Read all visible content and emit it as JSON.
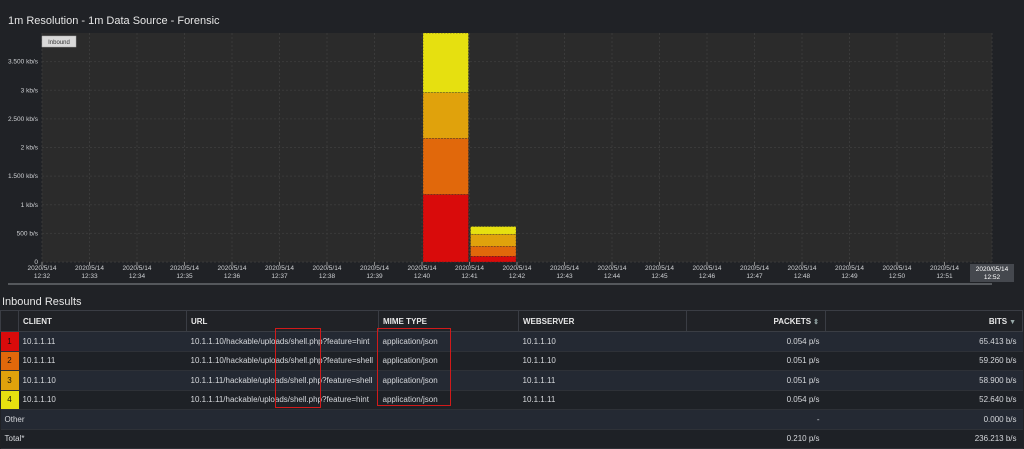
{
  "chart_title": "1m Resolution - 1m Data Source - Forensic",
  "chart_data": {
    "type": "bar",
    "stacked": true,
    "legend": {
      "label": "Inbound",
      "placement": "top-left"
    },
    "y_ticks": [
      "0",
      "500 b/s",
      "1 kb/s",
      "1.500 kb/s",
      "2 kb/s",
      "2.500 kb/s",
      "3 kb/s",
      "3.500 kb/s"
    ],
    "ylim": [
      0,
      4000
    ],
    "categories": [
      {
        "date": "2020/5/14",
        "time": "12:32"
      },
      {
        "date": "2020/5/14",
        "time": "12:33"
      },
      {
        "date": "2020/5/14",
        "time": "12:34"
      },
      {
        "date": "2020/5/14",
        "time": "12:35"
      },
      {
        "date": "2020/5/14",
        "time": "12:36"
      },
      {
        "date": "2020/5/14",
        "time": "12:37"
      },
      {
        "date": "2020/5/14",
        "time": "12:38"
      },
      {
        "date": "2020/5/14",
        "time": "12:39"
      },
      {
        "date": "2020/5/14",
        "time": "12:40"
      },
      {
        "date": "2020/5/14",
        "time": "12:41"
      },
      {
        "date": "2020/5/14",
        "time": "12:42"
      },
      {
        "date": "2020/5/14",
        "time": "12:43"
      },
      {
        "date": "2020/5/14",
        "time": "12:44"
      },
      {
        "date": "2020/5/14",
        "time": "12:45"
      },
      {
        "date": "2020/5/14",
        "time": "12:46"
      },
      {
        "date": "2020/5/14",
        "time": "12:47"
      },
      {
        "date": "2020/5/14",
        "time": "12:48"
      },
      {
        "date": "2020/5/14",
        "time": "12:49"
      },
      {
        "date": "2020/5/14",
        "time": "12:50"
      },
      {
        "date": "2020/5/14",
        "time": "12:51"
      }
    ],
    "cursor_label": {
      "date": "2020/05/14",
      "time": "12:52"
    },
    "series": [
      {
        "color": "#d90b0b",
        "values": [
          0,
          0,
          0,
          0,
          0,
          0,
          0,
          0,
          1180,
          100,
          0,
          0,
          0,
          0,
          0,
          0,
          0,
          0,
          0,
          0
        ]
      },
      {
        "color": "#e1680b",
        "values": [
          0,
          0,
          0,
          0,
          0,
          0,
          0,
          0,
          980,
          175,
          0,
          0,
          0,
          0,
          0,
          0,
          0,
          0,
          0,
          0
        ]
      },
      {
        "color": "#e0a20c",
        "values": [
          0,
          0,
          0,
          0,
          0,
          0,
          0,
          0,
          800,
          210,
          0,
          0,
          0,
          0,
          0,
          0,
          0,
          0,
          0,
          0
        ]
      },
      {
        "color": "#e6e010",
        "values": [
          0,
          0,
          0,
          0,
          0,
          0,
          0,
          0,
          1040,
          135,
          0,
          0,
          0,
          0,
          0,
          0,
          0,
          0,
          0,
          0
        ]
      }
    ]
  },
  "section_title": "Inbound Results",
  "table": {
    "headers": {
      "client": "CLIENT",
      "url": "URL",
      "mime": "MIME TYPE",
      "webserver": "WEBSERVER",
      "packets": "PACKETS",
      "bits": "BITS"
    },
    "rows": [
      {
        "rank": "1",
        "rank_color": "#d90b0b",
        "client": "10.1.1.11",
        "url": "10.1.1.10/hackable/uploads/shell.php?feature=hint",
        "mime": "application/json",
        "webserver": "10.1.1.10",
        "packets": "0.054 p/s",
        "bits": "65.413 b/s"
      },
      {
        "rank": "2",
        "rank_color": "#e1680b",
        "client": "10.1.1.11",
        "url": "10.1.1.10/hackable/uploads/shell.php?feature=shell",
        "mime": "application/json",
        "webserver": "10.1.1.10",
        "packets": "0.051 p/s",
        "bits": "59.260 b/s"
      },
      {
        "rank": "3",
        "rank_color": "#e0a20c",
        "client": "10.1.1.10",
        "url": "10.1.1.11/hackable/uploads/shell.php?feature=shell",
        "mime": "application/json",
        "webserver": "10.1.1.11",
        "packets": "0.051 p/s",
        "bits": "58.900 b/s"
      },
      {
        "rank": "4",
        "rank_color": "#e6e010",
        "client": "10.1.1.10",
        "url": "10.1.1.11/hackable/uploads/shell.php?feature=hint",
        "mime": "application/json",
        "webserver": "10.1.1.11",
        "packets": "0.054 p/s",
        "bits": "52.640 b/s"
      }
    ],
    "other": {
      "label": "Other",
      "packets": "-",
      "bits": "0.000 b/s"
    },
    "total": {
      "label": "Total*",
      "packets": "0.210 p/s",
      "bits": "236.213 b/s"
    }
  }
}
